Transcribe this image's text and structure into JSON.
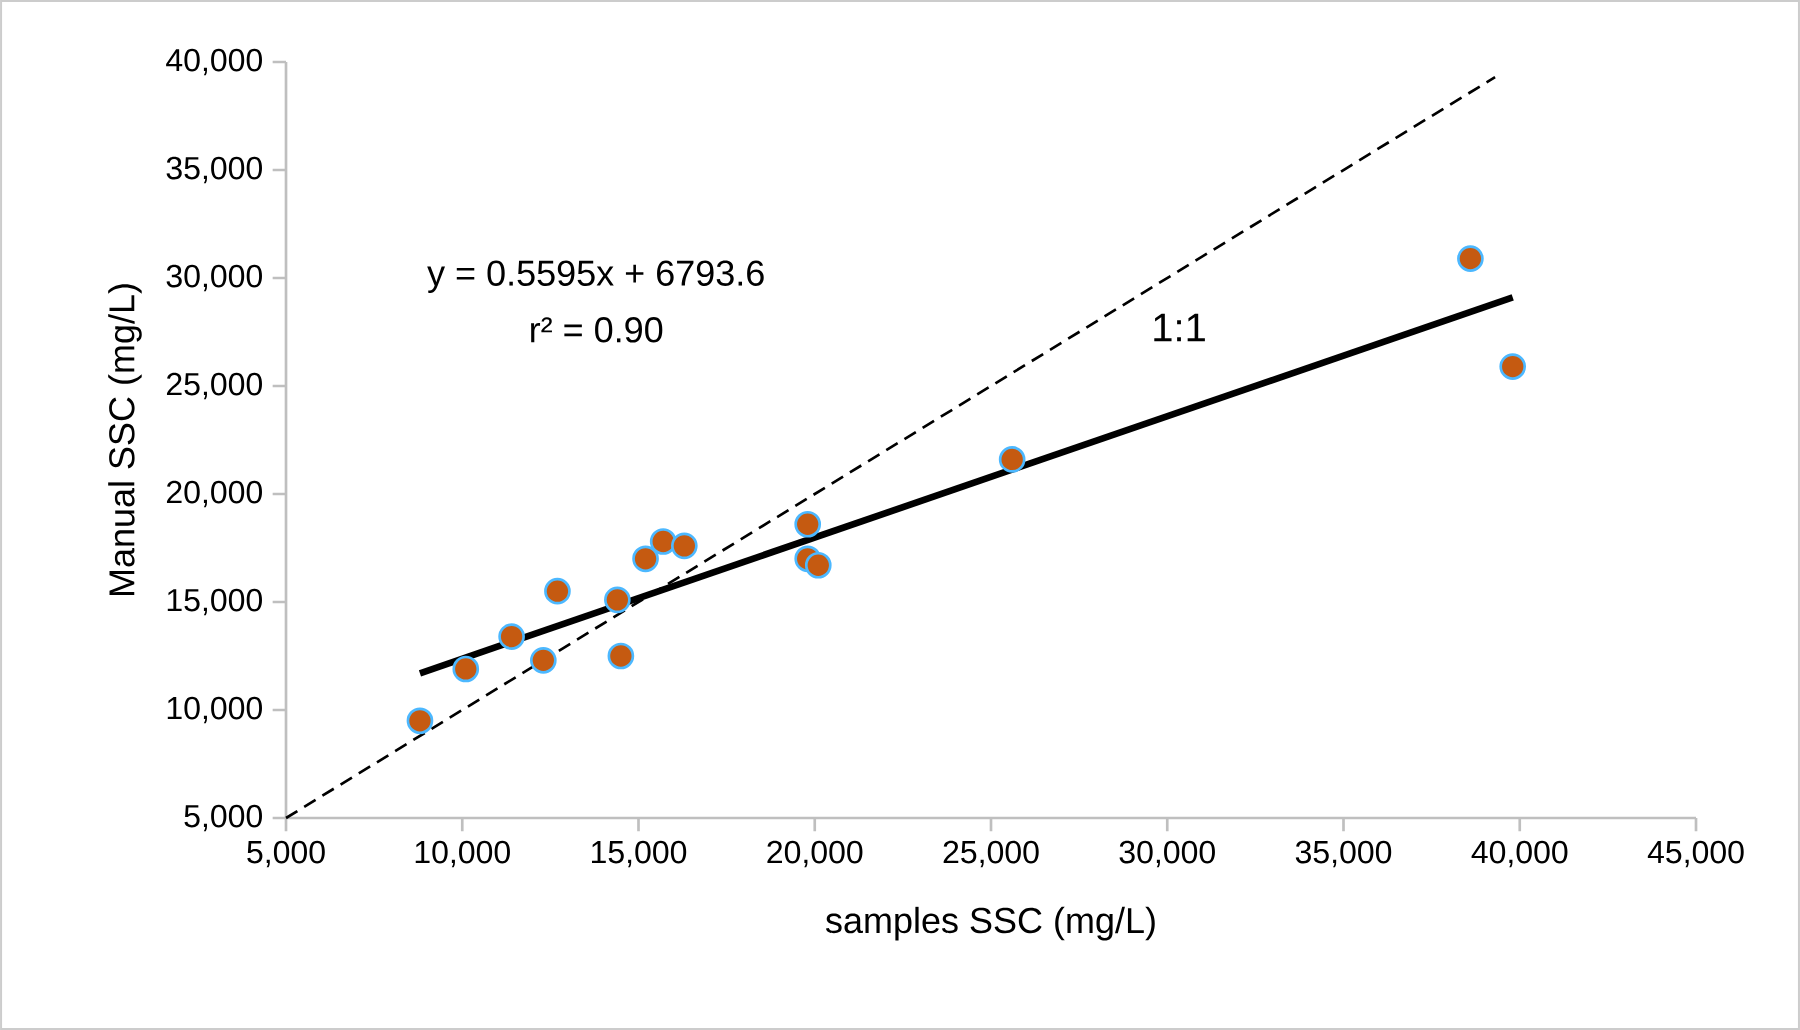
{
  "chart_data": {
    "type": "scatter",
    "xlabel": "samples SSC (mg/L)",
    "ylabel": "Manual SSC (mg/L)",
    "xlim": [
      5000,
      45000
    ],
    "ylim": [
      5000,
      40000
    ],
    "xticks": [
      {
        "value": 5000,
        "label": "5,000"
      },
      {
        "value": 10000,
        "label": "10,000"
      },
      {
        "value": 15000,
        "label": "15,000"
      },
      {
        "value": 20000,
        "label": "20,000"
      },
      {
        "value": 25000,
        "label": "25,000"
      },
      {
        "value": 30000,
        "label": "30,000"
      },
      {
        "value": 35000,
        "label": "35,000"
      },
      {
        "value": 40000,
        "label": "40,000"
      },
      {
        "value": 45000,
        "label": "45,000"
      }
    ],
    "yticks": [
      {
        "value": 5000,
        "label": "5,000"
      },
      {
        "value": 10000,
        "label": "10,000"
      },
      {
        "value": 15000,
        "label": "15,000"
      },
      {
        "value": 20000,
        "label": "20,000"
      },
      {
        "value": 25000,
        "label": "25,000"
      },
      {
        "value": 30000,
        "label": "30,000"
      },
      {
        "value": 35000,
        "label": "35,000"
      },
      {
        "value": 40000,
        "label": "40,000"
      }
    ],
    "grid": false,
    "annotations": [
      "y = 0.5595x + 6793.6",
      "r² = 0.90"
    ],
    "series": [
      {
        "color": "#c55a11",
        "marker": "circle",
        "x": [
          8800,
          10100,
          11400,
          12300,
          12700,
          14400,
          14500,
          15200,
          15700,
          16300,
          19800,
          19800,
          20100,
          25600,
          38600,
          39800
        ],
        "values": [
          9500,
          11900,
          13400,
          12300,
          15500,
          15100,
          12500,
          17000,
          17800,
          17600,
          18600,
          17000,
          16700,
          21600,
          30900,
          25900
        ]
      },
      {
        "type": "line",
        "color": "#000000",
        "marker": "none",
        "line_style": "solid",
        "x": [
          8800,
          39800
        ],
        "values": [
          11700,
          29100
        ]
      },
      {
        "type": "line",
        "name": "1:1",
        "color": "#000000",
        "marker": "none",
        "line_style": "dashed",
        "x": [
          5000,
          39300
        ],
        "values": [
          5000,
          39300
        ]
      }
    ]
  }
}
